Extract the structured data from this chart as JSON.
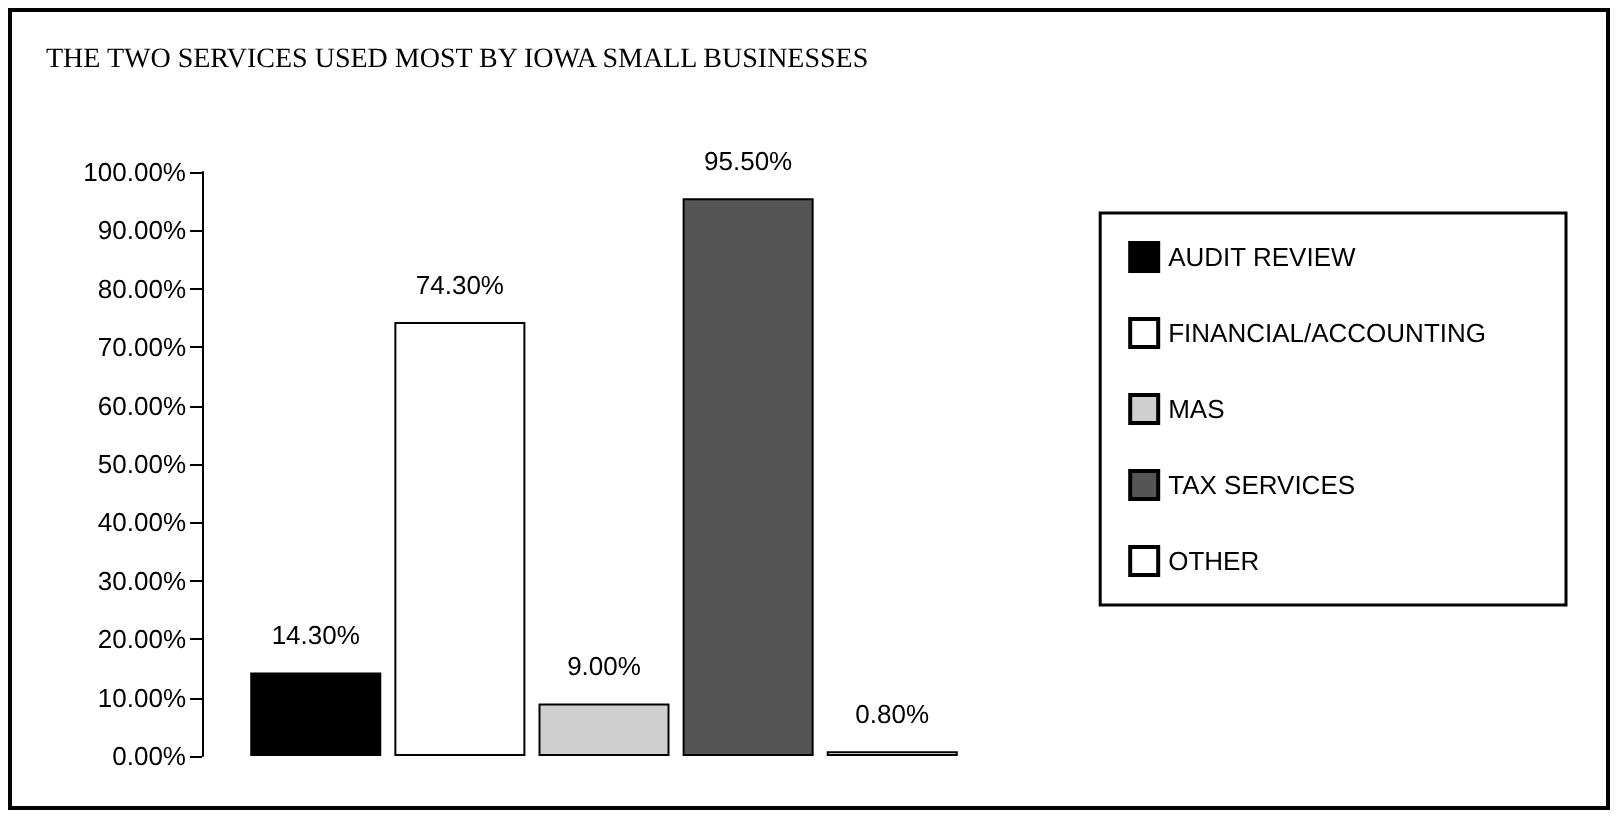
{
  "chart_data": {
    "type": "bar",
    "title": "THE TWO SERVICES USED MOST BY IOWA SMALL BUSINESSES",
    "categories": [
      null
    ],
    "series": [
      {
        "name": "AUDIT REVIEW",
        "color": "#000000",
        "values": [
          14.3
        ],
        "value_labels": [
          "14.30%"
        ]
      },
      {
        "name": "FINANCIAL/ACCOUNTING",
        "color": "#ffffff",
        "values": [
          74.3
        ],
        "value_labels": [
          "74.30%"
        ]
      },
      {
        "name": "MAS",
        "color": "#cfcfcf",
        "values": [
          9.0
        ],
        "value_labels": [
          "9.00%"
        ]
      },
      {
        "name": "TAX SERVICES",
        "color": "#555555",
        "values": [
          95.5
        ],
        "value_labels": [
          "95.50%"
        ]
      },
      {
        "name": "OTHER",
        "color": "#ffffff",
        "values": [
          0.8
        ],
        "value_labels": [
          "0.80%"
        ]
      }
    ],
    "ylim": [
      0,
      100
    ],
    "yticks": [
      {
        "value": 0,
        "label": "0.00%"
      },
      {
        "value": 10,
        "label": "10.00%"
      },
      {
        "value": 20,
        "label": "20.00%"
      },
      {
        "value": 30,
        "label": "30.00%"
      },
      {
        "value": 40,
        "label": "40.00%"
      },
      {
        "value": 50,
        "label": "50.00%"
      },
      {
        "value": 60,
        "label": "60.00%"
      },
      {
        "value": 70,
        "label": "70.00%"
      },
      {
        "value": 80,
        "label": "80.00%"
      },
      {
        "value": 90,
        "label": "90.00%"
      },
      {
        "value": 100,
        "label": "100.00%"
      }
    ],
    "grid": false,
    "legend": "right"
  }
}
